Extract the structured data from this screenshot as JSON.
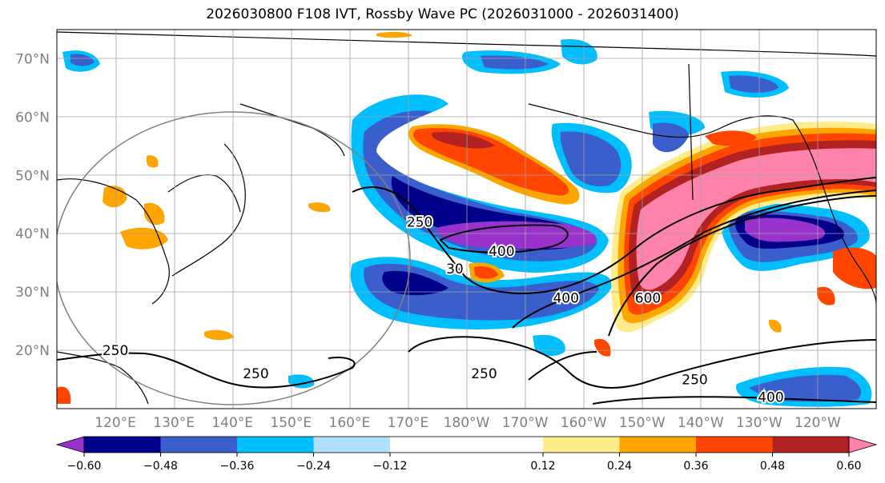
{
  "title": "2026030800 F108 IVT, Rossby Wave PC (2026031000 - 2026031400)",
  "chart_data": {
    "type": "heatmap",
    "title": "2026030800 F108 IVT, Rossby Wave PC (2026031000 - 2026031400)",
    "projection": "equirectangular",
    "lon_range": [
      110,
      250
    ],
    "lat_range": [
      10,
      75
    ],
    "grid": true,
    "lat_ticks": [
      "20°N",
      "30°N",
      "40°N",
      "50°N",
      "60°N",
      "70°N"
    ],
    "lon_ticks": [
      "120°E",
      "130°E",
      "140°E",
      "150°E",
      "160°E",
      "170°E",
      "180°W",
      "170°W",
      "160°W",
      "150°W",
      "140°W",
      "130°W",
      "120°W"
    ],
    "colorbar": {
      "ticks": [
        "−0.60",
        "−0.48",
        "−0.36",
        "−0.24",
        "−0.12",
        "0.12",
        "0.24",
        "0.36",
        "0.48",
        "0.60"
      ],
      "levels": [
        -0.72,
        -0.6,
        -0.48,
        -0.36,
        -0.24,
        -0.12,
        0.12,
        0.24,
        0.36,
        0.48,
        0.6,
        0.72
      ],
      "colors": [
        "#9932cc",
        "#00008b",
        "#3a5fcd",
        "#00bfff",
        "#b0e2ff",
        "#ffffff",
        "#ffec8b",
        "#ffa500",
        "#ff4500",
        "#b22222",
        "#ff82ab"
      ],
      "extend": "both"
    },
    "contour_labels": [
      {
        "text": "250",
        "lon": 172,
        "lat": 42
      },
      {
        "text": "400",
        "lon": 186,
        "lat": 37
      },
      {
        "text": "30",
        "lon": 178,
        "lat": 34
      },
      {
        "text": "400",
        "lon": 197,
        "lat": 29
      },
      {
        "text": "600",
        "lon": 211,
        "lat": 29
      },
      {
        "text": "250",
        "lon": 120,
        "lat": 20
      },
      {
        "text": "250",
        "lon": 144,
        "lat": 16
      },
      {
        "text": "250",
        "lon": 183,
        "lat": 16
      },
      {
        "text": "250",
        "lon": 219,
        "lat": 15
      },
      {
        "text": "400",
        "lon": 232,
        "lat": 12
      }
    ],
    "anomaly_regions": [
      {
        "level": -0.72,
        "lon": 189,
        "lat": 39,
        "desc": "strong negative core"
      },
      {
        "level": -0.6,
        "lon": 183,
        "lat": 45
      },
      {
        "level": -0.48,
        "lon": 168,
        "lat": 29
      },
      {
        "level": 0.6,
        "lon": 238,
        "lat": 46,
        "desc": "strong positive core"
      },
      {
        "level": 0.48,
        "lon": 212,
        "lat": 40
      },
      {
        "level": 0.36,
        "lon": 191,
        "lat": 53
      },
      {
        "level": -0.6,
        "lon": 234,
        "lat": 41
      }
    ]
  }
}
